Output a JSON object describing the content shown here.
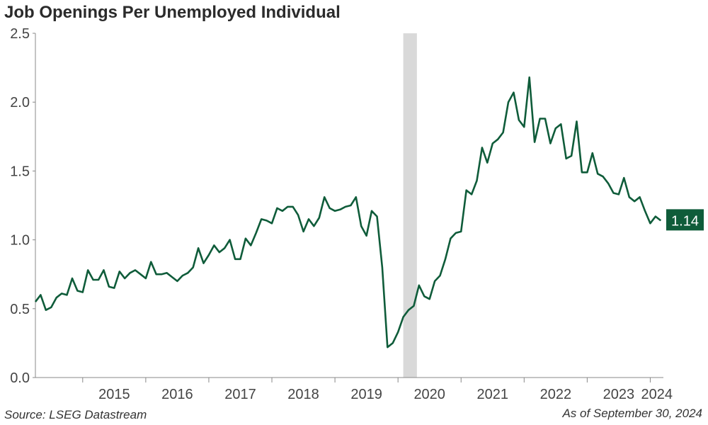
{
  "title": "Job Openings Per Unemployed Individual",
  "source": "Source: LSEG Datastream",
  "as_of": "As of September 30, 2024",
  "chart_data": {
    "type": "line",
    "title": "Job Openings Per Unemployed Individual",
    "xlabel": "",
    "ylabel": "",
    "ylim": [
      0.0,
      2.5
    ],
    "y_ticks": [
      "0.0",
      "0.5",
      "1.0",
      "1.5",
      "2.0",
      "2.5"
    ],
    "x_tick_labels": [
      "2015",
      "2016",
      "2017",
      "2018",
      "2019",
      "2020",
      "2021",
      "2022",
      "2023",
      "2024"
    ],
    "grid": false,
    "line_color": "#0f5c3a",
    "recession_shading": {
      "start": "2020-02",
      "end": "2020-04",
      "color": "#d9d9d9"
    },
    "last_value_label": "1.14",
    "series": [
      {
        "start": "2014-04",
        "frequency": "monthly",
        "values": [
          0.55,
          0.6,
          0.49,
          0.51,
          0.58,
          0.61,
          0.6,
          0.72,
          0.63,
          0.62,
          0.78,
          0.71,
          0.71,
          0.78,
          0.66,
          0.65,
          0.77,
          0.72,
          0.76,
          0.78,
          0.75,
          0.72,
          0.84,
          0.75,
          0.75,
          0.76,
          0.73,
          0.7,
          0.74,
          0.76,
          0.8,
          0.94,
          0.83,
          0.89,
          0.96,
          0.91,
          0.94,
          1.0,
          0.86,
          0.86,
          1.01,
          0.96,
          1.05,
          1.15,
          1.14,
          1.12,
          1.23,
          1.21,
          1.24,
          1.24,
          1.18,
          1.06,
          1.15,
          1.1,
          1.16,
          1.31,
          1.23,
          1.21,
          1.22,
          1.24,
          1.25,
          1.31,
          1.1,
          1.03,
          1.21,
          1.17,
          0.8,
          0.22,
          0.25,
          0.33,
          0.44,
          0.49,
          0.52,
          0.67,
          0.59,
          0.57,
          0.7,
          0.74,
          0.86,
          1.01,
          1.05,
          1.06,
          1.36,
          1.33,
          1.43,
          1.67,
          1.56,
          1.7,
          1.73,
          1.78,
          2.0,
          2.07,
          1.87,
          1.82,
          2.18,
          1.71,
          1.88,
          1.88,
          1.7,
          1.81,
          1.84,
          1.59,
          1.61,
          1.86,
          1.49,
          1.49,
          1.63,
          1.48,
          1.46,
          1.41,
          1.34,
          1.33,
          1.45,
          1.31,
          1.28,
          1.31,
          1.21,
          1.12,
          1.17,
          1.14
        ]
      }
    ]
  }
}
